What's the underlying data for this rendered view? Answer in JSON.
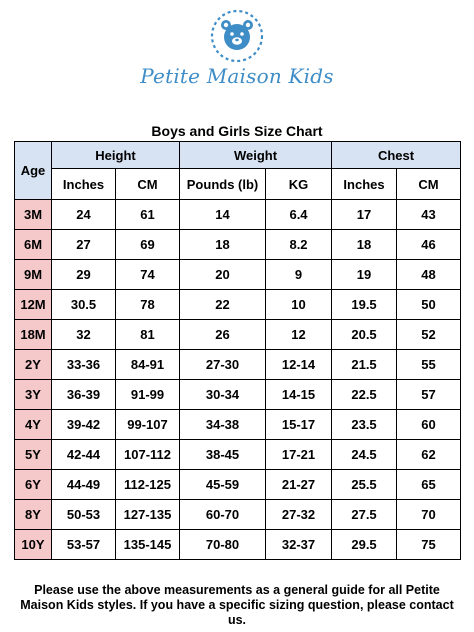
{
  "brand": {
    "name": "Petite Maison Kids",
    "logo_icon": "teddy-bear-icon",
    "color": "#3f8dc7"
  },
  "chart": {
    "title": "Boys and Girls Size Chart",
    "age_header": "Age",
    "groups": [
      "Height",
      "Weight",
      "Chest"
    ],
    "units": [
      "Inches",
      "CM",
      "Pounds (lb)",
      "KG",
      "Inches",
      "CM"
    ],
    "rows": [
      [
        "3M",
        "24",
        "61",
        "14",
        "6.4",
        "17",
        "43"
      ],
      [
        "6M",
        "27",
        "69",
        "18",
        "8.2",
        "18",
        "46"
      ],
      [
        "9M",
        "29",
        "74",
        "20",
        "9",
        "19",
        "48"
      ],
      [
        "12M",
        "30.5",
        "78",
        "22",
        "10",
        "19.5",
        "50"
      ],
      [
        "18M",
        "32",
        "81",
        "26",
        "12",
        "20.5",
        "52"
      ],
      [
        "2Y",
        "33-36",
        "84-91",
        "27-30",
        "12-14",
        "21.5",
        "55"
      ],
      [
        "3Y",
        "36-39",
        "91-99",
        "30-34",
        "14-15",
        "22.5",
        "57"
      ],
      [
        "4Y",
        "39-42",
        "99-107",
        "34-38",
        "15-17",
        "23.5",
        "60"
      ],
      [
        "5Y",
        "42-44",
        "107-112",
        "38-45",
        "17-21",
        "24.5",
        "62"
      ],
      [
        "6Y",
        "44-49",
        "112-125",
        "45-59",
        "21-27",
        "25.5",
        "65"
      ],
      [
        "8Y",
        "50-53",
        "127-135",
        "60-70",
        "27-32",
        "27.5",
        "70"
      ],
      [
        "10Y",
        "53-57",
        "135-145",
        "70-80",
        "32-37",
        "29.5",
        "75"
      ]
    ],
    "colors": {
      "header_bg": "#d7e3f2",
      "age_bg": "#f5c9c9"
    }
  },
  "footer": {
    "note": "Please use the above measurements as a general guide for all Petite Maison Kids styles. If you have a specific sizing question, please contact us."
  }
}
